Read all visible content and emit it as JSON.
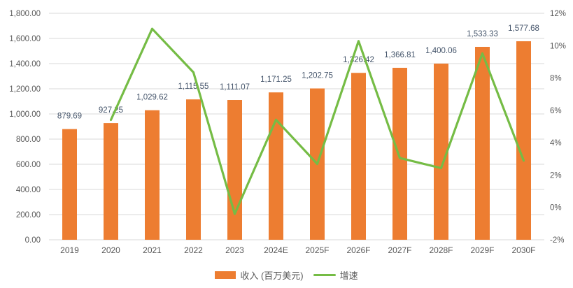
{
  "chart_data": {
    "type": "bar",
    "subtype": "combo-bar-line-dual-axis",
    "title": "",
    "categories": [
      "2019",
      "2020",
      "2021",
      "2022",
      "2023",
      "2024E",
      "2025F",
      "2026F",
      "2027F",
      "2028F",
      "2029F",
      "2030F"
    ],
    "series": [
      {
        "name": "收入 (百万美元)",
        "type": "bar",
        "axis": "left",
        "color": "#ED7D31",
        "values": [
          879.69,
          927.25,
          1029.62,
          1115.55,
          1111.07,
          1171.25,
          1202.75,
          1326.42,
          1366.81,
          1400.06,
          1533.33,
          1577.68
        ],
        "labels": [
          "879.69",
          "927.25",
          "1,029.62",
          "1,115.55",
          "1,111.07",
          "1,171.25",
          "1,202.75",
          "1,326.42",
          "1,366.81",
          "1,400.06",
          "1,533.33",
          "1,577.68"
        ]
      },
      {
        "name": "增速",
        "type": "line",
        "axis": "right",
        "color": "#75BC45",
        "values_pct": [
          null,
          5.41,
          11.04,
          8.35,
          -0.4,
          5.42,
          2.69,
          10.28,
          3.05,
          2.43,
          9.52,
          2.89
        ]
      }
    ],
    "left_axis": {
      "min": 0,
      "max": 1800,
      "tick_values": [
        0,
        200,
        400,
        600,
        800,
        1000,
        1200,
        1400,
        1600,
        1800
      ],
      "tick_labels": [
        "0.00",
        "200.00",
        "400.00",
        "600.00",
        "800.00",
        "1,000.00",
        "1,200.00",
        "1,400.00",
        "1,600.00",
        "1,800.00"
      ]
    },
    "right_axis": {
      "min": -2,
      "max": 12,
      "tick_values": [
        -2,
        0,
        2,
        4,
        6,
        8,
        10,
        12
      ],
      "tick_labels": [
        "-2%",
        "0%",
        "2%",
        "4%",
        "6%",
        "8%",
        "10%",
        "12%"
      ]
    },
    "grid": true,
    "legend_position": "bottom"
  },
  "legend": {
    "revenue_label": "收入 (百万美元)",
    "growth_label": "增速"
  },
  "colors": {
    "bar": "#ED7D31",
    "line": "#75BC45",
    "grid": "#D9D9D9",
    "axis_text": "#595959",
    "data_label": "#44546A",
    "background": "#FFFFFF"
  }
}
